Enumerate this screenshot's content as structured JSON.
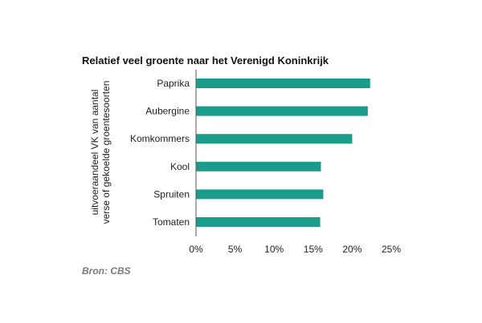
{
  "chart_data": {
    "type": "bar",
    "orientation": "horizontal",
    "title": "Relatief veel groente naar het Verenigd Koninkrijk",
    "ylabel_lines": [
      "uitvoeraandeel VK van aantal",
      "verse of gekoelde groentesoorten"
    ],
    "xlabel": "",
    "categories": [
      "Paprika",
      "Aubergine",
      "Komkommers",
      "Kool",
      "Spruiten",
      "Tomaten"
    ],
    "values": [
      22.3,
      22.0,
      20.0,
      16.0,
      16.3,
      15.9
    ],
    "xlim": [
      0,
      25
    ],
    "xticks": [
      0,
      5,
      10,
      15,
      20,
      25
    ],
    "xtick_labels": [
      "0%",
      "5%",
      "10%",
      "15%",
      "20%",
      "25%"
    ],
    "bar_color": "#1a9c8a",
    "grid": false,
    "source": "Bron: CBS"
  }
}
